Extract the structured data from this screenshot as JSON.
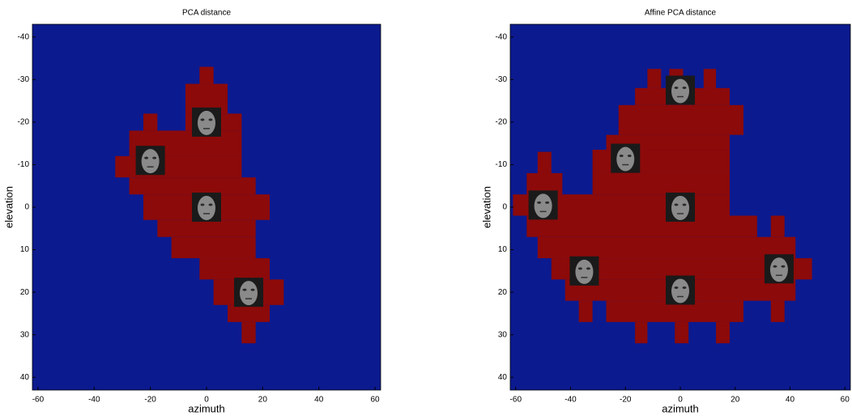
{
  "chart_data": [
    {
      "type": "mask",
      "title": "PCA distance",
      "x_label": "azimuth",
      "y_label": "elevation",
      "xlim": [
        -62,
        62
      ],
      "ylim": [
        43,
        -43
      ],
      "xticks": [
        -60,
        -40,
        -20,
        0,
        20,
        40,
        60
      ],
      "yticks": [
        -40,
        -30,
        -20,
        -10,
        0,
        10,
        20,
        30,
        40
      ],
      "background_color": "#0c1a8f",
      "color": "#8c0a0a",
      "regions": [
        {
          "x": [
            -2.5,
            2.5
          ],
          "y": [
            -33,
            -29
          ]
        },
        {
          "x": [
            -7.5,
            7.5
          ],
          "y": [
            -29,
            -22
          ]
        },
        {
          "x": [
            -22.5,
            -17.5
          ],
          "y": [
            -22,
            -18
          ]
        },
        {
          "x": [
            -7.5,
            12.5
          ],
          "y": [
            -22,
            -18
          ]
        },
        {
          "x": [
            -27.5,
            12.5
          ],
          "y": [
            -18,
            -12
          ]
        },
        {
          "x": [
            -32.5,
            12.5
          ],
          "y": [
            -12,
            -7
          ]
        },
        {
          "x": [
            -27.5,
            17.5
          ],
          "y": [
            -7,
            -3
          ]
        },
        {
          "x": [
            -22.5,
            22.5
          ],
          "y": [
            -3,
            3
          ]
        },
        {
          "x": [
            -17.5,
            17.5
          ],
          "y": [
            3,
            7
          ]
        },
        {
          "x": [
            -12.5,
            17.5
          ],
          "y": [
            7,
            12
          ]
        },
        {
          "x": [
            -2.5,
            22.5
          ],
          "y": [
            12,
            17
          ]
        },
        {
          "x": [
            2.5,
            27.5
          ],
          "y": [
            17,
            23
          ]
        },
        {
          "x": [
            7.5,
            22.5
          ],
          "y": [
            23,
            27
          ]
        },
        {
          "x": [
            12.5,
            17.5
          ],
          "y": [
            27,
            32
          ]
        }
      ],
      "faces": [
        {
          "x": 0,
          "y": -20
        },
        {
          "x": -20,
          "y": -11
        },
        {
          "x": 0,
          "y": 0
        },
        {
          "x": 15,
          "y": 20
        }
      ]
    },
    {
      "type": "mask",
      "title": "Affine PCA distance",
      "x_label": "azimuth",
      "y_label": "elevation",
      "xlim": [
        -62,
        62
      ],
      "ylim": [
        43,
        -43
      ],
      "xticks": [
        -60,
        -40,
        -20,
        0,
        20,
        40,
        60
      ],
      "yticks": [
        -40,
        -30,
        -20,
        -10,
        0,
        10,
        20,
        30,
        40
      ],
      "background_color": "#0c1a8f",
      "color": "#8c0a0a",
      "regions": [
        {
          "x": [
            -12,
            -7
          ],
          "y": [
            -32.5,
            -28
          ]
        },
        {
          "x": [
            -4,
            1
          ],
          "y": [
            -32.5,
            -28
          ]
        },
        {
          "x": [
            8.5,
            13
          ],
          "y": [
            -32.5,
            -28
          ]
        },
        {
          "x": [
            -16.5,
            18
          ],
          "y": [
            -28,
            -24
          ]
        },
        {
          "x": [
            -22.5,
            23
          ],
          "y": [
            -24,
            -17
          ]
        },
        {
          "x": [
            -27,
            18
          ],
          "y": [
            -17,
            -13.5
          ]
        },
        {
          "x": [
            -32,
            18
          ],
          "y": [
            -13.5,
            -8
          ]
        },
        {
          "x": [
            -52,
            -47
          ],
          "y": [
            -13,
            -8
          ]
        },
        {
          "x": [
            -56,
            -43
          ],
          "y": [
            -8,
            -3
          ]
        },
        {
          "x": [
            -32,
            18
          ],
          "y": [
            -8,
            -3
          ]
        },
        {
          "x": [
            -61,
            18
          ],
          "y": [
            -3,
            2
          ]
        },
        {
          "x": [
            -56,
            28
          ],
          "y": [
            2,
            7
          ]
        },
        {
          "x": [
            33,
            38
          ],
          "y": [
            2,
            7
          ]
        },
        {
          "x": [
            -52,
            42
          ],
          "y": [
            7,
            12
          ]
        },
        {
          "x": [
            -47,
            48
          ],
          "y": [
            12,
            17
          ]
        },
        {
          "x": [
            -42,
            42
          ],
          "y": [
            17,
            22
          ]
        },
        {
          "x": [
            -37,
            -32
          ],
          "y": [
            22,
            27
          ]
        },
        {
          "x": [
            -27,
            23
          ],
          "y": [
            22,
            27
          ]
        },
        {
          "x": [
            33,
            38
          ],
          "y": [
            22,
            27
          ]
        },
        {
          "x": [
            -16.5,
            -12
          ],
          "y": [
            27,
            32
          ]
        },
        {
          "x": [
            -2,
            3
          ],
          "y": [
            27,
            32
          ]
        },
        {
          "x": [
            13,
            18
          ],
          "y": [
            27,
            32
          ]
        }
      ],
      "faces": [
        {
          "x": 0,
          "y": -27.5
        },
        {
          "x": -20,
          "y": -11.5
        },
        {
          "x": -50,
          "y": -0.5
        },
        {
          "x": 0,
          "y": 0
        },
        {
          "x": -35,
          "y": 15
        },
        {
          "x": 0,
          "y": 19.5
        },
        {
          "x": 36,
          "y": 14.5
        }
      ]
    }
  ]
}
